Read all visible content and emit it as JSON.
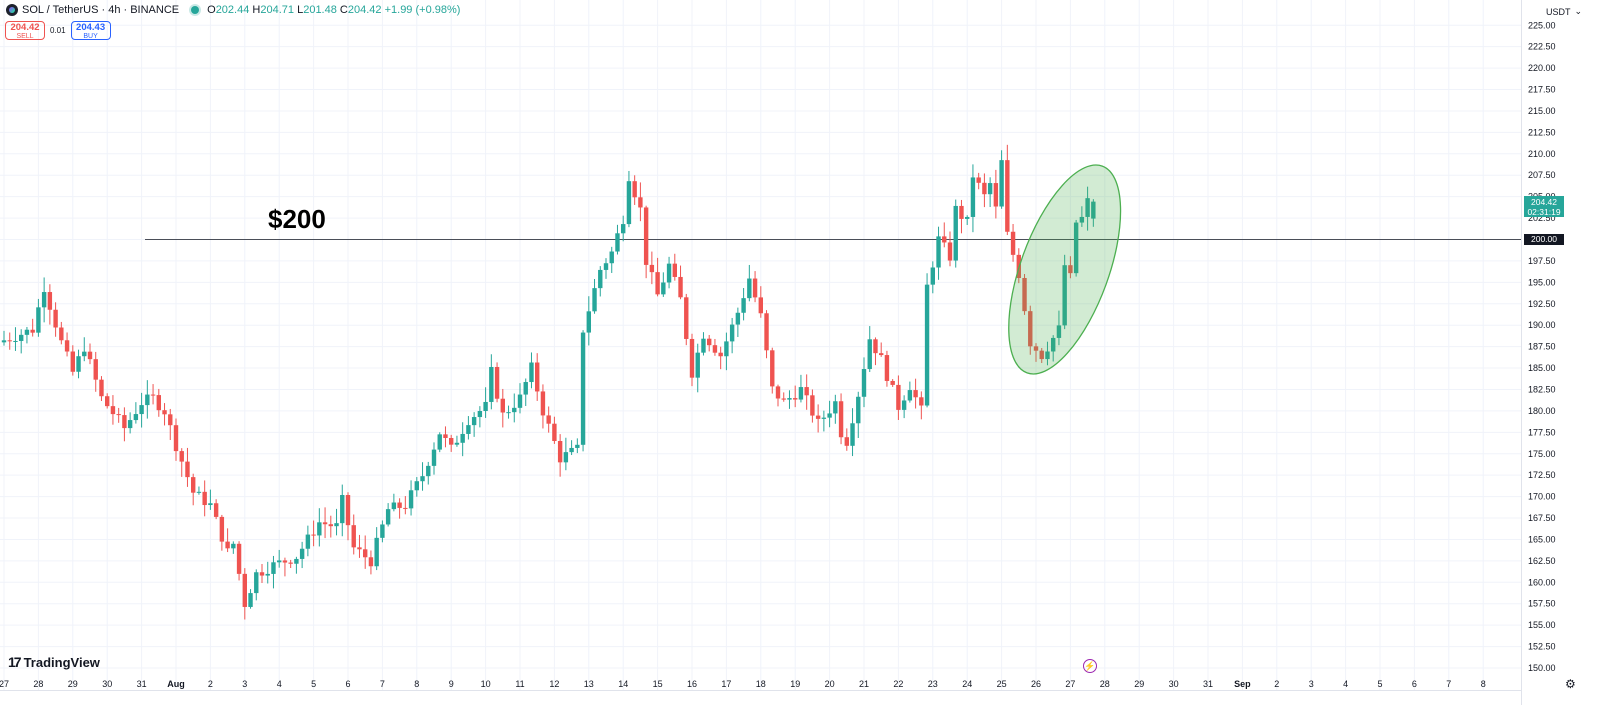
{
  "header": {
    "symbol": "SOL / TetherUS · 4h · BINANCE",
    "o_label": "O",
    "o": "202.44",
    "h_label": "H",
    "h": "204.71",
    "l_label": "L",
    "l": "201.48",
    "c_label": "C",
    "c": "204.42",
    "change": "+1.99 (+0.98%)"
  },
  "trade": {
    "sell_price": "204.42",
    "sell_label": "SELL",
    "spread": "0.01",
    "buy_price": "204.43",
    "buy_label": "BUY"
  },
  "currency": "USDT",
  "branding": "TradingView",
  "annotation": "$200",
  "last_price": {
    "price": "204.42",
    "countdown": "02:31:19"
  },
  "level_label": "200.00",
  "colors": {
    "up": "#26a69a",
    "down": "#ef5350",
    "highlight_fill": "#c8e6c9",
    "highlight_stroke": "#4caf50"
  },
  "chart_data": {
    "type": "candlestick",
    "ylim": [
      150,
      225
    ],
    "y_ticks": [
      "150.00",
      "152.50",
      "155.00",
      "157.50",
      "160.00",
      "162.50",
      "165.00",
      "167.50",
      "170.00",
      "172.50",
      "175.00",
      "177.50",
      "180.00",
      "182.50",
      "185.00",
      "187.50",
      "190.00",
      "192.50",
      "195.00",
      "197.50",
      "200.00",
      "202.50",
      "205.00",
      "207.50",
      "210.00",
      "212.50",
      "215.00",
      "217.50",
      "220.00",
      "222.50",
      "225.00"
    ],
    "x_ticks": [
      "27",
      "28",
      "29",
      "30",
      "31",
      "Aug",
      "2",
      "3",
      "4",
      "5",
      "6",
      "7",
      "8",
      "9",
      "10",
      "11",
      "12",
      "13",
      "14",
      "15",
      "16",
      "17",
      "18",
      "19",
      "20",
      "21",
      "22",
      "23",
      "24",
      "25",
      "26",
      "27",
      "28",
      "29",
      "30",
      "31",
      "Sep",
      "2",
      "3",
      "4",
      "5",
      "6",
      "7",
      "8"
    ],
    "horizontal_line": 200,
    "highlight": "ellipse around the Aug 25–27 rebound from about 186 to 204",
    "waypoints": [
      [
        "07-27 00:00",
        188.0
      ],
      [
        "07-28 00:00",
        189.5
      ],
      [
        "07-28 08:00",
        194.5
      ],
      [
        "07-28 20:00",
        188.0
      ],
      [
        "07-29 04:00",
        184.5
      ],
      [
        "07-29 12:00",
        187.5
      ],
      [
        "07-30 00:00",
        181.5
      ],
      [
        "07-30 16:00",
        178.0
      ],
      [
        "07-31 04:00",
        181.0
      ],
      [
        "07-31 12:00",
        181.5
      ],
      [
        "07-31 20:00",
        180.0
      ],
      [
        "08-01 04:00",
        176.0
      ],
      [
        "08-01 16:00",
        170.5
      ],
      [
        "08-02 04:00",
        169.0
      ],
      [
        "08-02 16:00",
        163.5
      ],
      [
        "08-02 20:00",
        164.5
      ],
      [
        "08-03 04:00",
        157.5
      ],
      [
        "08-03 12:00",
        161.0
      ],
      [
        "08-04 00:00",
        162.0
      ],
      [
        "08-04 16:00",
        163.0
      ],
      [
        "08-05 08:00",
        167.0
      ],
      [
        "08-05 20:00",
        166.5
      ],
      [
        "08-06 00:00",
        169.5
      ],
      [
        "08-06 08:00",
        164.0
      ],
      [
        "08-06 20:00",
        162.5
      ],
      [
        "08-07 08:00",
        168.5
      ],
      [
        "08-07 20:00",
        169.0
      ],
      [
        "08-08 08:00",
        172.5
      ],
      [
        "08-08 20:00",
        177.5
      ],
      [
        "08-09 04:00",
        175.5
      ],
      [
        "08-09 16:00",
        179.0
      ],
      [
        "08-10 04:00",
        180.5
      ],
      [
        "08-10 08:00",
        184.5
      ],
      [
        "08-10 16:00",
        179.5
      ],
      [
        "08-11 04:00",
        181.5
      ],
      [
        "08-11 12:00",
        185.0
      ],
      [
        "08-11 20:00",
        180.0
      ],
      [
        "08-12 08:00",
        174.5
      ],
      [
        "08-12 20:00",
        175.5
      ],
      [
        "08-13 00:00",
        189.5
      ],
      [
        "08-13 12:00",
        196.5
      ],
      [
        "08-13 20:00",
        198.5
      ],
      [
        "08-14 04:00",
        202.5
      ],
      [
        "08-14 08:00",
        207.5
      ],
      [
        "08-14 16:00",
        203.5
      ],
      [
        "08-14 20:00",
        197.5
      ],
      [
        "08-15 04:00",
        193.5
      ],
      [
        "08-15 12:00",
        197.0
      ],
      [
        "08-15 20:00",
        193.0
      ],
      [
        "08-16 04:00",
        184.5
      ],
      [
        "08-16 12:00",
        189.0
      ],
      [
        "08-17 00:00",
        186.5
      ],
      [
        "08-17 12:00",
        191.5
      ],
      [
        "08-17 20:00",
        195.5
      ],
      [
        "08-18 04:00",
        191.0
      ],
      [
        "08-18 12:00",
        182.5
      ],
      [
        "08-18 20:00",
        181.0
      ],
      [
        "08-19 08:00",
        182.5
      ],
      [
        "08-19 20:00",
        178.5
      ],
      [
        "08-20 08:00",
        181.0
      ],
      [
        "08-20 12:00",
        177.5
      ],
      [
        "08-20 16:00",
        176.5
      ],
      [
        "08-21 00:00",
        182.0
      ],
      [
        "08-21 08:00",
        188.5
      ],
      [
        "08-21 16:00",
        186.0
      ],
      [
        "08-22 04:00",
        180.5
      ],
      [
        "08-22 12:00",
        183.0
      ],
      [
        "08-22 20:00",
        180.0
      ],
      [
        "08-23 00:00",
        194.5
      ],
      [
        "08-23 08:00",
        200.0
      ],
      [
        "08-23 16:00",
        198.0
      ],
      [
        "08-23 20:00",
        203.5
      ],
      [
        "08-24 04:00",
        202.0
      ],
      [
        "08-24 08:00",
        207.5
      ],
      [
        "08-24 16:00",
        205.0
      ],
      [
        "08-24 20:00",
        206.5
      ],
      [
        "08-25 00:00",
        203.5
      ],
      [
        "08-25 04:00",
        209.0
      ],
      [
        "08-25 08:00",
        200.5
      ],
      [
        "08-25 16:00",
        196.0
      ],
      [
        "08-26 00:00",
        188.0
      ],
      [
        "08-26 08:00",
        186.5
      ],
      [
        "08-26 20:00",
        189.5
      ],
      [
        "08-27 00:00",
        197.0
      ],
      [
        "08-27 04:00",
        195.5
      ],
      [
        "08-27 08:00",
        202.0
      ],
      [
        "08-27 12:00",
        202.44
      ],
      [
        "08-27 16:00",
        204.42
      ]
    ]
  }
}
